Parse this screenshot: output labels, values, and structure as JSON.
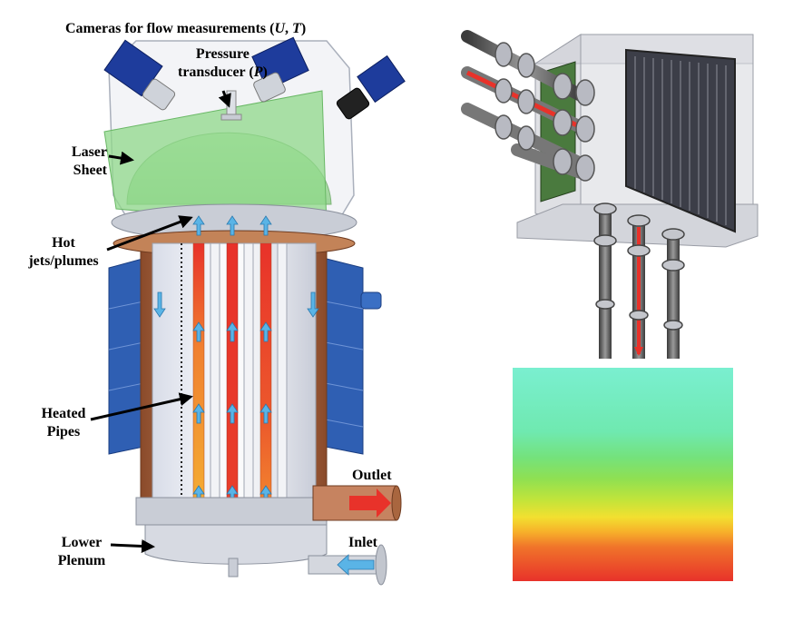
{
  "labels": {
    "cameras_title": "Cameras for flow measurements (",
    "cameras_u": "U",
    "cameras_sep": ", ",
    "cameras_t": "T",
    "cameras_close": ")",
    "pressure_line1": "Pressure",
    "pressure_line2_pre": "transducer (",
    "pressure_p": "P",
    "pressure_line2_post": ")",
    "laser_line1": "Laser",
    "laser_line2": "Sheet",
    "hot_line1": "Hot",
    "hot_line2": "jets/plumes",
    "heated_line1": "Heated",
    "heated_line2": "Pipes",
    "lower_line1": "Lower",
    "lower_line2": "Plenum",
    "outlet": "Outlet",
    "inlet": "Inlet"
  },
  "colors": {
    "vessel_copper": "#b8744e",
    "jacket_blue": "#2f5fb3",
    "laser_green": "#8fd88a",
    "flow_arrow": "#5ab4e6",
    "camera_blue": "#1e3c9c",
    "hot_pipe_red": "#e8322a",
    "warm_pipe_orange": "#f3a531",
    "contour_top": "#76f0c8",
    "contour_bottom": "#e8322a"
  },
  "contour_bands": [
    {
      "fraction": 0.0,
      "color": "#7aefd0"
    },
    {
      "fraction": 0.3,
      "color": "#6fe9b0"
    },
    {
      "fraction": 0.42,
      "color": "#74e27c"
    },
    {
      "fraction": 0.52,
      "color": "#8fe052"
    },
    {
      "fraction": 0.62,
      "color": "#c2e43a"
    },
    {
      "fraction": 0.7,
      "color": "#f2e030"
    },
    {
      "fraction": 0.77,
      "color": "#f7b02a"
    },
    {
      "fraction": 0.84,
      "color": "#f0742a"
    },
    {
      "fraction": 1.0,
      "color": "#e8322a"
    }
  ]
}
